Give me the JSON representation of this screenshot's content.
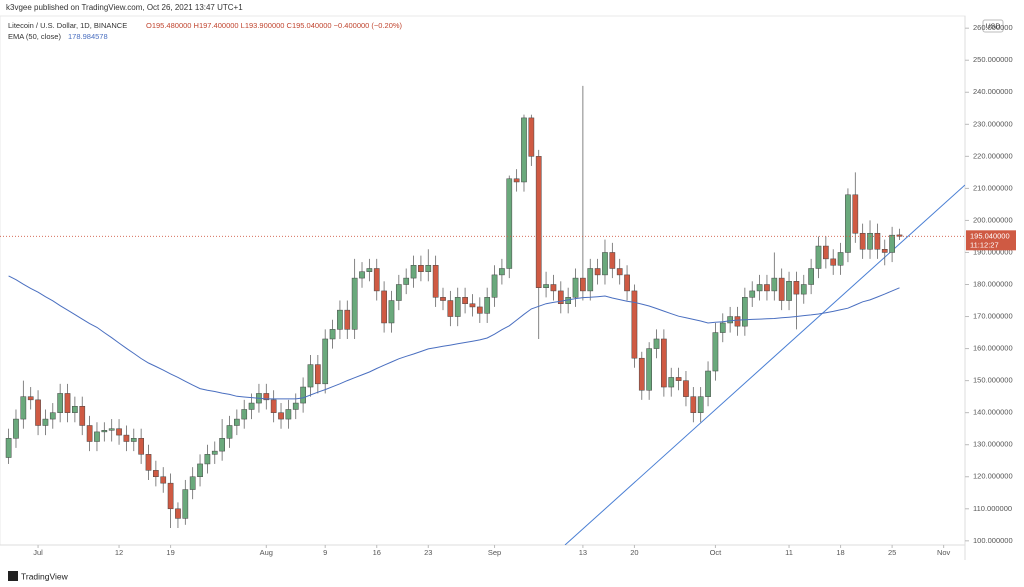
{
  "header": {
    "publisher": "k3vgee published on TradingView.com, Oct 26, 2021 13:47 UTC+1",
    "footer": "TradingView"
  },
  "chart_data": {
    "type": "candlestick",
    "title": "Litecoin / U.S. Dollar, 1D, BINANCE",
    "legend_values": "O195.480000 H197.400000 L193.900000 C195.040000 −0.400000 (−0.20%)",
    "currency": "USD",
    "last_price_label": "195.040000",
    "countdown": "11:12:27",
    "up_color": "#6aa97c",
    "down_color": "#cf5a43",
    "xlim": [
      -1.17,
      129.9
    ],
    "xticks": [
      {
        "value": 4,
        "label": "Jul"
      },
      {
        "value": 15,
        "label": "12"
      },
      {
        "value": 22,
        "label": "19"
      },
      {
        "value": 35,
        "label": "Aug"
      },
      {
        "value": 43,
        "label": "9"
      },
      {
        "value": 50,
        "label": "16"
      },
      {
        "value": 57,
        "label": "23"
      },
      {
        "value": 66,
        "label": "Sep"
      },
      {
        "value": 78,
        "label": "13"
      },
      {
        "value": 85,
        "label": "20"
      },
      {
        "value": 96,
        "label": "Oct"
      },
      {
        "value": 106,
        "label": "11"
      },
      {
        "value": 113,
        "label": "18"
      },
      {
        "value": 120,
        "label": "25"
      },
      {
        "value": 127,
        "label": "Nov"
      }
    ],
    "ylim": [
      98.7,
      263.8
    ],
    "yticks": [
      {
        "value": 100,
        "label": "100.000000"
      },
      {
        "value": 110,
        "label": "110.000000"
      },
      {
        "value": 120,
        "label": "120.000000"
      },
      {
        "value": 130,
        "label": "130.000000"
      },
      {
        "value": 140,
        "label": "140.000000"
      },
      {
        "value": 150,
        "label": "150.000000"
      },
      {
        "value": 160,
        "label": "160.000000"
      },
      {
        "value": 170,
        "label": "170.000000"
      },
      {
        "value": 180,
        "label": "180.000000"
      },
      {
        "value": 190,
        "label": "190.000000"
      },
      {
        "value": 200,
        "label": "200.000000"
      },
      {
        "value": 210,
        "label": "210.000000"
      },
      {
        "value": 220,
        "label": "220.000000"
      },
      {
        "value": 230,
        "label": "230.000000"
      },
      {
        "value": 240,
        "label": "240.000000"
      },
      {
        "value": 250,
        "label": "250.000000"
      },
      {
        "value": 260,
        "label": "260.000000"
      }
    ],
    "open": [
      126,
      132,
      138,
      145,
      144,
      136,
      138,
      140,
      146,
      140,
      142,
      136,
      131,
      134,
      134.5,
      135,
      133,
      131,
      132,
      127,
      122,
      120,
      118,
      110,
      107,
      116,
      120,
      124,
      127,
      128,
      132,
      136,
      138,
      141,
      143,
      146,
      144,
      140,
      138,
      141,
      143,
      148,
      155,
      149,
      163,
      166,
      172,
      166,
      182,
      184,
      185,
      178,
      168,
      175,
      180,
      182,
      186,
      184,
      186,
      176,
      175,
      170,
      176,
      174,
      173,
      171,
      176,
      183,
      185,
      213,
      212,
      232,
      220,
      179,
      180,
      178,
      174,
      176,
      182,
      178,
      185,
      183,
      190,
      185,
      183,
      178,
      157,
      147,
      160,
      163,
      148,
      151,
      150,
      145,
      140,
      145,
      153,
      165,
      168,
      170,
      167,
      176,
      178,
      180,
      178,
      182,
      175,
      181,
      177,
      180,
      185,
      192,
      188,
      186,
      190,
      208,
      196,
      191,
      196,
      191,
      190,
      195.48
    ],
    "high": [
      135,
      141,
      150,
      148,
      147,
      141,
      143,
      149,
      149,
      145,
      145,
      139,
      137,
      137,
      138,
      138,
      136,
      135,
      135,
      130,
      125,
      123,
      121,
      112,
      119,
      123,
      127,
      130,
      131,
      138,
      139,
      141,
      144,
      146,
      149,
      149,
      147,
      143,
      144,
      146,
      151,
      158,
      158,
      166,
      169,
      175,
      175,
      188,
      187,
      188,
      188,
      181,
      178,
      183,
      185,
      189,
      189,
      191,
      189,
      179,
      178,
      179,
      179,
      177,
      176,
      179,
      186,
      188,
      214,
      216,
      233,
      233,
      222,
      184,
      183,
      181,
      179,
      185,
      242,
      188,
      188,
      194,
      193,
      188,
      186,
      180,
      159,
      162,
      166,
      166,
      154,
      154,
      153,
      148,
      148,
      156,
      168,
      171,
      173,
      173,
      179,
      181,
      183,
      183,
      190,
      185,
      184,
      184,
      183,
      188,
      195,
      195,
      191,
      193,
      210,
      215,
      199,
      200,
      199,
      194,
      198,
      197.4
    ],
    "low": [
      124,
      129,
      135,
      141,
      133,
      133,
      135,
      137,
      137,
      137,
      133,
      128,
      128,
      131,
      131,
      130,
      128,
      128,
      124,
      119,
      117,
      115,
      104,
      104,
      105,
      113,
      117,
      121,
      124,
      125,
      129,
      133,
      135,
      138,
      140,
      141,
      137,
      135,
      135,
      138,
      140,
      145,
      146,
      146,
      160,
      163,
      163,
      163,
      179,
      181,
      175,
      165,
      165,
      172,
      177,
      179,
      181,
      181,
      173,
      172,
      167,
      167,
      171,
      170,
      168,
      168,
      173,
      180,
      182,
      209,
      209,
      217,
      163,
      176,
      175,
      171,
      171,
      173,
      175,
      175,
      180,
      180,
      182,
      180,
      175,
      154,
      144,
      144,
      157,
      145,
      145,
      147,
      142,
      137,
      137,
      142,
      150,
      162,
      165,
      164,
      164,
      173,
      175,
      175,
      175,
      172,
      172,
      166,
      174,
      177,
      182,
      185,
      183,
      183,
      187,
      193,
      188,
      188,
      188,
      186,
      187,
      193.9
    ],
    "close": [
      132,
      138,
      145,
      144,
      136,
      138,
      140,
      146,
      140,
      142,
      136,
      131,
      134,
      134.5,
      135,
      133,
      131,
      132,
      127,
      122,
      120,
      118,
      110,
      107,
      116,
      120,
      124,
      127,
      128,
      132,
      136,
      138,
      141,
      143,
      146,
      144,
      140,
      138,
      141,
      143,
      148,
      155,
      149,
      163,
      166,
      172,
      166,
      182,
      184,
      185,
      178,
      168,
      175,
      180,
      182,
      186,
      184,
      186,
      176,
      175,
      170,
      176,
      174,
      173,
      171,
      176,
      183,
      185,
      213,
      212,
      232,
      220,
      179,
      180,
      178,
      174,
      176,
      182,
      178,
      185,
      183,
      190,
      185,
      183,
      178,
      157,
      147,
      160,
      163,
      148,
      151,
      150,
      145,
      140,
      145,
      153,
      165,
      168,
      170,
      167,
      176,
      178,
      180,
      178,
      182,
      175,
      181,
      177,
      180,
      185,
      192,
      188,
      186,
      190,
      208,
      196,
      191,
      196,
      191,
      190,
      195.4,
      195.04
    ],
    "ema": {
      "name": "EMA (50, close)",
      "value_label": "178.984578",
      "color": "#4a6fc0",
      "values": [
        182.7,
        181.5,
        180.1,
        178.8,
        177.6,
        176.2,
        174.9,
        173.4,
        172.0,
        170.6,
        169.2,
        167.8,
        166.6,
        165.0,
        163.4,
        161.7,
        160.1,
        158.5,
        156.9,
        155.5,
        154.4,
        153.3,
        152.1,
        151.0,
        149.8,
        148.6,
        147.5,
        147.0,
        146.6,
        146.1,
        145.7,
        145.1,
        144.9,
        144.7,
        144.5,
        144.3,
        144.3,
        144.3,
        144.3,
        144.3,
        144.6,
        145.5,
        146.4,
        147.2,
        148.1,
        149.0,
        150.0,
        150.9,
        151.8,
        152.7,
        153.8,
        154.8,
        155.8,
        156.8,
        157.6,
        158.3,
        159.1,
        159.9,
        160.3,
        160.7,
        161.1,
        161.5,
        161.9,
        162.3,
        162.7,
        163.3,
        164.5,
        165.9,
        167.1,
        168.9,
        170.7,
        172.4,
        173.2,
        174.0,
        174.4,
        174.8,
        175.2,
        175.6,
        175.9,
        176.0,
        176.2,
        176.4,
        175.8,
        175.3,
        174.8,
        174.4,
        173.9,
        173.3,
        172.5,
        171.7,
        170.9,
        170.1,
        169.6,
        169.1,
        168.6,
        168.0,
        168.2,
        168.4,
        168.7,
        168.9,
        169.0,
        169.1,
        169.2,
        169.3,
        169.4,
        169.6,
        169.8,
        170.0,
        170.3,
        170.5,
        170.8,
        171.2,
        171.6,
        172.1,
        172.6,
        173.6,
        174.6,
        175.2,
        176.1,
        177.0,
        178.0,
        178.984578
      ]
    }
  }
}
